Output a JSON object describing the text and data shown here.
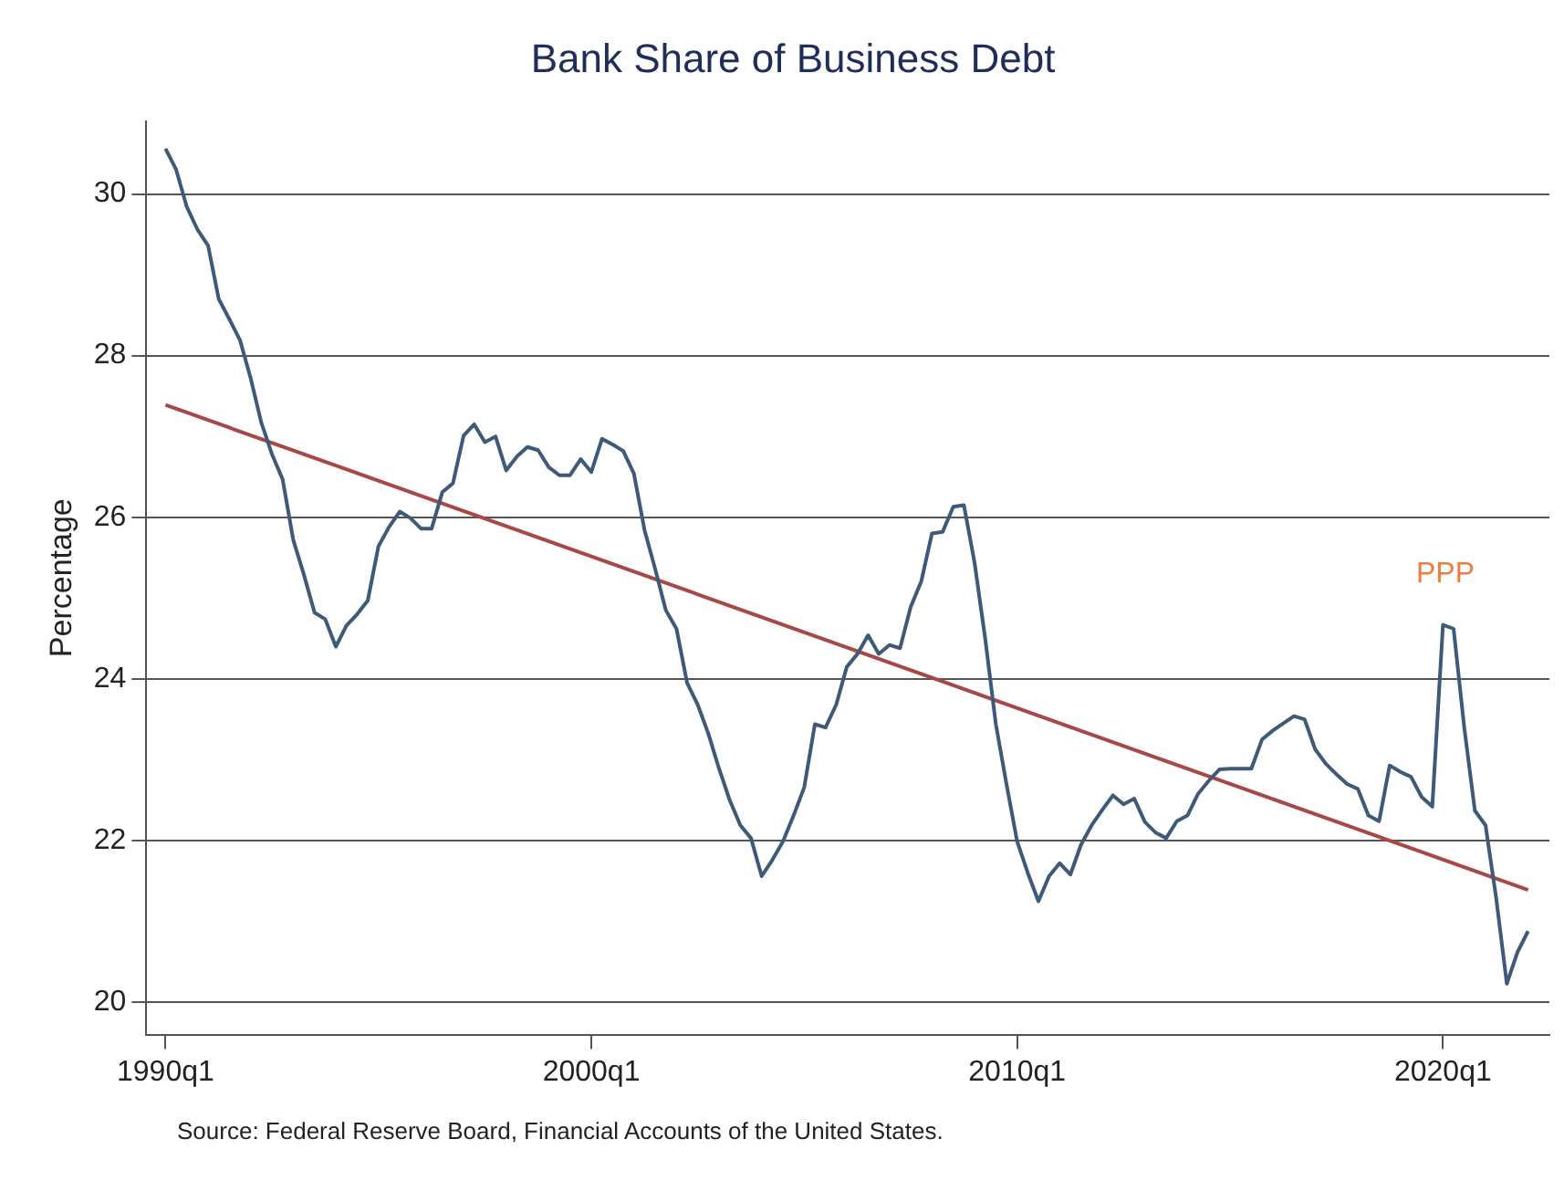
{
  "chart_data": {
    "type": "line",
    "title": "Bank Share of Business Debt",
    "ylabel": "Percentage",
    "categories": [
      "1990q1",
      null,
      null,
      null,
      null,
      null,
      null,
      null,
      null,
      null,
      null,
      null,
      null,
      null,
      null,
      null,
      null,
      null,
      null,
      null,
      null,
      null,
      null,
      null,
      null,
      null,
      null,
      null,
      null,
      null,
      null,
      null,
      null,
      null,
      null,
      null,
      null,
      null,
      null,
      null,
      "2000q1",
      null,
      null,
      null,
      null,
      null,
      null,
      null,
      null,
      null,
      null,
      null,
      null,
      null,
      null,
      null,
      null,
      null,
      null,
      null,
      null,
      null,
      null,
      null,
      null,
      null,
      null,
      null,
      null,
      null,
      null,
      null,
      null,
      null,
      null,
      null,
      null,
      null,
      null,
      null,
      "2010q1",
      null,
      null,
      null,
      null,
      null,
      null,
      null,
      null,
      null,
      null,
      null,
      null,
      null,
      null,
      null,
      null,
      null,
      null,
      null,
      null,
      null,
      null,
      null,
      null,
      null,
      null,
      null,
      null,
      null,
      null,
      null,
      null,
      null,
      null,
      null,
      null,
      null,
      null,
      null,
      "2020q1",
      null,
      null,
      null,
      null,
      null,
      null,
      null,
      null
    ],
    "ylim": [
      19.6,
      30.9
    ],
    "yticks": [
      20,
      22,
      24,
      26,
      28,
      30
    ],
    "grid": "y",
    "legend": false,
    "marker": "none",
    "line_style": "solid",
    "series": [
      {
        "color": "#3d5a78",
        "values": [
          30.56,
          30.3,
          29.84,
          29.56,
          29.36,
          28.7,
          28.45,
          28.19,
          27.72,
          27.17,
          26.78,
          26.47,
          25.72,
          25.29,
          24.82,
          24.74,
          24.4,
          24.66,
          24.8,
          24.97,
          25.64,
          25.88,
          26.07,
          25.99,
          25.86,
          25.86,
          26.31,
          26.42,
          27.01,
          27.15,
          26.93,
          27.0,
          26.58,
          26.75,
          26.87,
          26.83,
          26.62,
          26.52,
          26.52,
          26.72,
          26.56,
          26.97,
          26.9,
          26.82,
          26.54,
          25.84,
          25.36,
          24.85,
          24.62,
          23.95,
          23.68,
          23.32,
          22.89,
          22.5,
          22.19,
          22.03,
          21.56,
          21.76,
          21.99,
          22.31,
          22.66,
          23.44,
          23.4,
          23.68,
          24.15,
          24.31,
          24.54,
          24.31,
          24.42,
          24.38,
          24.89,
          25.21,
          25.8,
          25.82,
          26.13,
          26.15,
          25.44,
          24.5,
          23.44,
          22.7,
          21.99,
          21.6,
          21.25,
          21.56,
          21.72,
          21.58,
          21.95,
          22.19,
          22.38,
          22.56,
          22.45,
          22.52,
          22.23,
          22.1,
          22.03,
          22.24,
          22.31,
          22.58,
          22.74,
          22.88,
          22.89,
          22.89,
          22.89,
          23.25,
          23.36,
          23.45,
          23.54,
          23.5,
          23.13,
          22.95,
          22.82,
          22.7,
          22.64,
          22.31,
          22.24,
          22.93,
          22.85,
          22.79,
          22.54,
          22.42,
          24.67,
          24.62,
          23.4,
          22.37,
          22.19,
          21.29,
          20.23,
          20.62,
          20.88
        ]
      },
      {
        "type": "line",
        "color": "#a94646",
        "values": [
          27.39,
          null,
          null,
          null,
          null,
          null,
          null,
          null,
          null,
          null,
          null,
          null,
          null,
          null,
          null,
          null,
          null,
          null,
          null,
          null,
          null,
          null,
          null,
          null,
          null,
          null,
          null,
          null,
          null,
          null,
          null,
          null,
          null,
          null,
          null,
          null,
          null,
          null,
          null,
          null,
          null,
          null,
          null,
          null,
          null,
          null,
          null,
          null,
          null,
          null,
          null,
          null,
          null,
          null,
          null,
          null,
          null,
          null,
          null,
          null,
          null,
          null,
          null,
          null,
          null,
          null,
          null,
          null,
          null,
          null,
          null,
          null,
          null,
          null,
          null,
          null,
          null,
          null,
          null,
          null,
          null,
          null,
          null,
          null,
          null,
          null,
          null,
          null,
          null,
          null,
          null,
          null,
          null,
          null,
          null,
          null,
          null,
          null,
          null,
          null,
          null,
          null,
          null,
          null,
          null,
          null,
          null,
          null,
          null,
          null,
          null,
          null,
          null,
          null,
          null,
          null,
          null,
          null,
          null,
          null,
          null,
          null,
          null,
          null,
          null,
          null,
          null,
          null,
          21.39
        ]
      }
    ],
    "annotations": [
      "PPP",
      "Source: Federal Reserve Board, Financial Accounts of the United States."
    ]
  }
}
